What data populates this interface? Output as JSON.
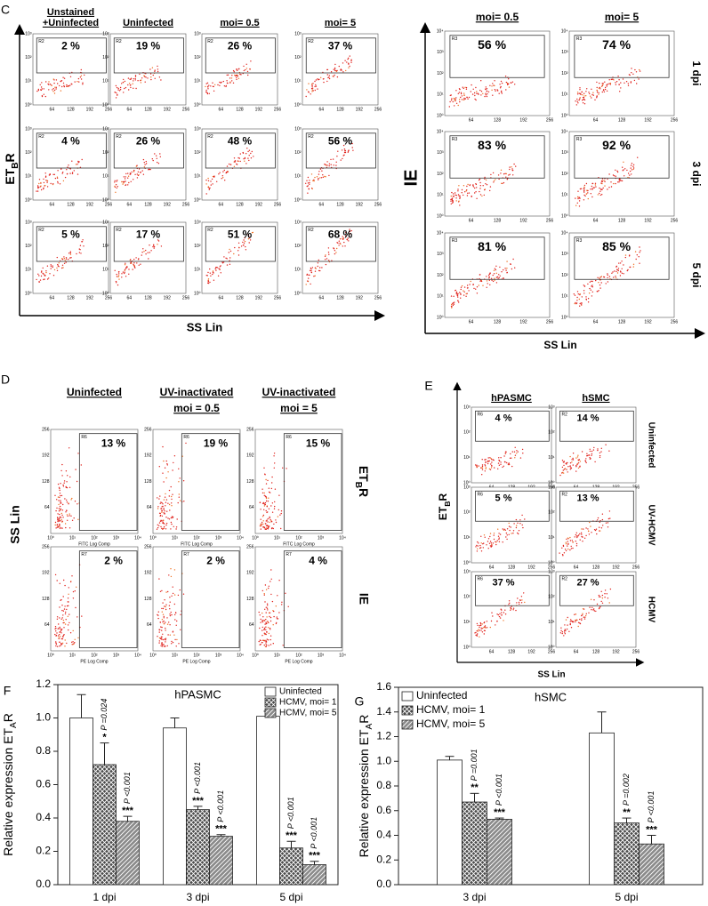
{
  "panel_c": {
    "label": "C",
    "left": {
      "column_headers": [
        [
          "Unstained",
          "+Uninfected"
        ],
        [
          "Uninfected"
        ],
        [
          "moi= 0.5"
        ],
        [
          "moi= 5"
        ]
      ],
      "y_label": [
        "ET",
        "B",
        "R"
      ],
      "x_label": "SS Lin",
      "gate": "R2",
      "x_ticks": [
        "64",
        "128",
        "192",
        "256"
      ],
      "y_ticks": [
        "10⁰",
        "10¹",
        "10²",
        "10³"
      ],
      "percentages": [
        [
          "2 %",
          "19 %",
          "26 %",
          "37 %"
        ],
        [
          "4 %",
          "26 %",
          "48 %",
          "56 %"
        ],
        [
          "5 %",
          "17 %",
          "51 %",
          "68 %"
        ]
      ]
    },
    "right": {
      "column_headers": [
        [
          "moi= 0.5"
        ],
        [
          "moi= 5"
        ]
      ],
      "row_labels": [
        "1 dpi",
        "3 dpi",
        "5 dpi"
      ],
      "y_label": "IE",
      "x_label": "SS Lin",
      "gate": "R3",
      "x_ticks": [
        "64",
        "128",
        "192",
        "256"
      ],
      "y_ticks": [
        "10⁰",
        "10¹",
        "10²",
        "10³",
        "10⁴"
      ],
      "percentages": [
        [
          "56 %",
          "74 %"
        ],
        [
          "83 %",
          "92 %"
        ],
        [
          "81 %",
          "85 %"
        ]
      ]
    }
  },
  "panel_d": {
    "label": "D",
    "column_headers": [
      [
        "Uninfected"
      ],
      [
        "UV-inactivated",
        "moi = 0.5"
      ],
      [
        "UV-inactivated",
        "moi = 5"
      ]
    ],
    "row_labels": [
      [
        "ET",
        "B",
        "R"
      ],
      "IE"
    ],
    "y_label": "SS Lin",
    "gates": [
      "R6",
      "R7"
    ],
    "x_axis_labels": [
      "FITC Log Comp",
      "PE Log Comp"
    ],
    "x_ticks": [
      "10⁰",
      "10¹",
      "10²",
      "10³",
      "10⁴"
    ],
    "y_ticks": [
      "64",
      "128",
      "192",
      "256"
    ],
    "percentages": [
      [
        "13 %",
        "19 %",
        "15 %"
      ],
      [
        "2 %",
        "2 %",
        "4 %"
      ]
    ]
  },
  "panel_e": {
    "label": "E",
    "column_headers": [
      [
        "hPASMC"
      ],
      [
        "hSMC"
      ]
    ],
    "row_labels": [
      "Uninfected",
      "UV-HCMV",
      "HCMV"
    ],
    "y_label": [
      "ET",
      "B",
      "R"
    ],
    "x_label": "SS Lin",
    "gates": [
      "R6",
      "R2"
    ],
    "x_ticks": [
      "64",
      "128",
      "192",
      "256"
    ],
    "y_ticks": [
      "10⁰",
      "10¹",
      "10²",
      "10³"
    ],
    "percentages": [
      [
        "4 %",
        "14 %"
      ],
      [
        "5 %",
        "13 %"
      ],
      [
        "37 %",
        "27 %"
      ]
    ]
  },
  "chart_data": [
    {
      "type": "bar",
      "panel_label": "F",
      "title": "hPASMC",
      "y_label": [
        "Relative expression ET",
        "A",
        "R"
      ],
      "categories": [
        "1 dpi",
        "3 dpi",
        "5 dpi"
      ],
      "series": [
        {
          "name": "Uninfected",
          "color": "#ffffff",
          "pattern": "none",
          "values": [
            1.0,
            0.94,
            1.01
          ],
          "errors": [
            0.14,
            0.06,
            0.03
          ]
        },
        {
          "name": "HCMV, moi= 1",
          "color": "#4a4a4a",
          "pattern": "crosshatch",
          "values": [
            0.72,
            0.45,
            0.22
          ],
          "errors": [
            0.13,
            0.02,
            0.04
          ],
          "significance": [
            "*",
            "***",
            "***"
          ],
          "p_labels": [
            "P =0.024",
            "P <0.001",
            "P <0.001"
          ]
        },
        {
          "name": "HCMV, moi= 5",
          "color": "#8a8a8a",
          "pattern": "diagonal",
          "values": [
            0.38,
            0.29,
            0.12
          ],
          "errors": [
            0.03,
            0.01,
            0.02
          ],
          "significance": [
            "***",
            "***",
            "***"
          ],
          "p_labels": [
            "P <0.001",
            "P <0.001",
            "P <0.001"
          ]
        }
      ],
      "ylim": [
        0,
        1.2
      ],
      "yticks": [
        {
          "value": 0,
          "label": "0.0"
        },
        0.2,
        0.4,
        0.6,
        0.8,
        {
          "value": 1,
          "label": "1.0"
        },
        1.2
      ],
      "legend": "top-right",
      "grid": false
    },
    {
      "type": "bar",
      "panel_label": "G",
      "title": "hSMC",
      "y_label": [
        "Relative expression ET",
        "A",
        "R"
      ],
      "categories": [
        "3 dpi",
        "5 dpi"
      ],
      "series": [
        {
          "name": "Uninfected",
          "color": "#ffffff",
          "pattern": "none",
          "values": [
            1.01,
            1.23
          ],
          "errors": [
            0.03,
            0.17
          ]
        },
        {
          "name": "HCMV, moi= 1",
          "color": "#4a4a4a",
          "pattern": "crosshatch",
          "values": [
            0.67,
            0.5
          ],
          "errors": [
            0.07,
            0.04
          ],
          "significance": [
            "**",
            "**"
          ],
          "p_labels": [
            "P =0.001",
            "P =0.002"
          ]
        },
        {
          "name": "HCMV, moi= 5",
          "color": "#8a8a8a",
          "pattern": "diagonal",
          "values": [
            0.53,
            0.33
          ],
          "errors": [
            0.01,
            0.07
          ],
          "significance": [
            "***",
            "***"
          ],
          "p_labels": [
            "P <0.001",
            "P <0.001"
          ]
        }
      ],
      "ylim": [
        0,
        1.6
      ],
      "yticks": [
        {
          "value": 0,
          "label": "0.0"
        },
        0.2,
        0.4,
        0.6,
        0.8,
        {
          "value": 1,
          "label": "1.0"
        },
        1.2,
        1.4,
        1.6
      ],
      "legend": "top-left",
      "grid": false
    }
  ]
}
